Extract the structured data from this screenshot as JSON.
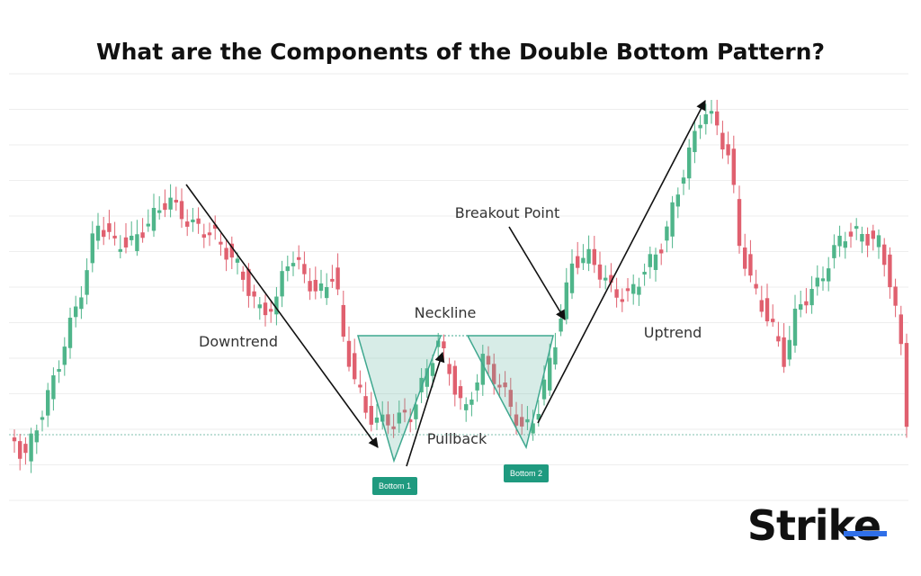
{
  "title": "What are the Components of the Double Bottom Pattern?",
  "labels": {
    "downtrend": "Downtrend",
    "neckline": "Neckline",
    "breakout": "Breakout Point",
    "uptrend": "Uptrend",
    "pullback": "Pullback",
    "bottom1": "Bottom 1",
    "bottom2": "Bottom 2"
  },
  "logo": "Strike"
}
